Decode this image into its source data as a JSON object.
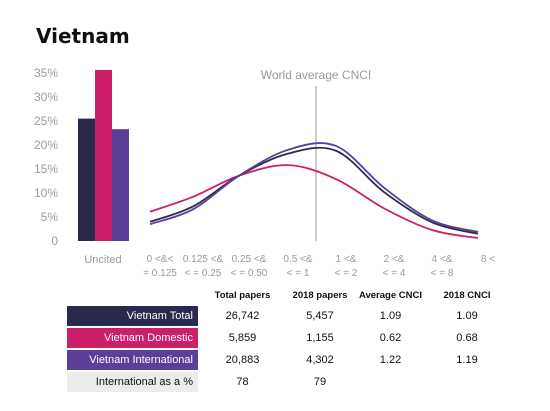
{
  "title": "Vietnam",
  "colors": {
    "total": "#2a2a4e",
    "domestic": "#cc1f6a",
    "international": "#5b3f98",
    "intl_pct_bg": "#ececec",
    "axis_text": "#9a9a9a",
    "vline": "#999999"
  },
  "chart_data": {
    "type": "line",
    "title": "Vietnam",
    "annotation": "World average CNCI",
    "y_ticks": [
      "35%",
      "30%",
      "25%",
      "20%",
      "15%",
      "10%",
      "5%",
      "0"
    ],
    "ylim": [
      0,
      35
    ],
    "uncited_label": "Uncited",
    "uncited_bars": [
      {
        "name": "Vietnam Total",
        "value": 25.5
      },
      {
        "name": "Vietnam Domestic",
        "value": 36
      },
      {
        "name": "Vietnam International",
        "value": 23.3
      }
    ],
    "categories": [
      {
        "line1": "0 <&<",
        "line2": "= 0.125"
      },
      {
        "line1": "0.125 <&",
        "line2": "< = 0.25"
      },
      {
        "line1": "0.25 <&",
        "line2": "< = 0.50"
      },
      {
        "line1": "0.5 <&",
        "line2": "< = 1"
      },
      {
        "line1": "1 <&",
        "line2": "< = 2"
      },
      {
        "line1": "2 <&",
        "line2": "< = 4"
      },
      {
        "line1": "4 <&",
        "line2": "< = 8"
      },
      {
        "line1": "8 <",
        "line2": ""
      }
    ],
    "series": [
      {
        "name": "Vietnam Total",
        "values": [
          4.0,
          7.2,
          13.6,
          18.2,
          18.8,
          10.2,
          3.9,
          1.5
        ]
      },
      {
        "name": "Vietnam Domestic",
        "values": [
          6.1,
          9.2,
          13.6,
          15.8,
          12.9,
          6.8,
          2.3,
          0.6
        ]
      },
      {
        "name": "Vietnam International",
        "values": [
          3.5,
          6.6,
          13.6,
          19.0,
          19.8,
          11.1,
          4.3,
          1.9
        ]
      }
    ],
    "world_average_position": "between 0.5 <& < = 1 and 1 <& < = 2"
  },
  "table": {
    "headers": [
      "Total papers",
      "2018 papers",
      "Average CNCI",
      "2018 CNCI"
    ],
    "rows": [
      {
        "label": "Vietnam Total",
        "cells": [
          "26,742",
          "5,457",
          "1.09",
          "1.09"
        ]
      },
      {
        "label": "Vietnam Domestic",
        "cells": [
          "5,859",
          "1,155",
          "0.62",
          "0.68"
        ]
      },
      {
        "label": "Vietnam International",
        "cells": [
          "20,883",
          "4,302",
          "1.22",
          "1.19"
        ]
      },
      {
        "label": "International as a %",
        "cells": [
          "78",
          "79",
          "",
          ""
        ]
      }
    ]
  }
}
